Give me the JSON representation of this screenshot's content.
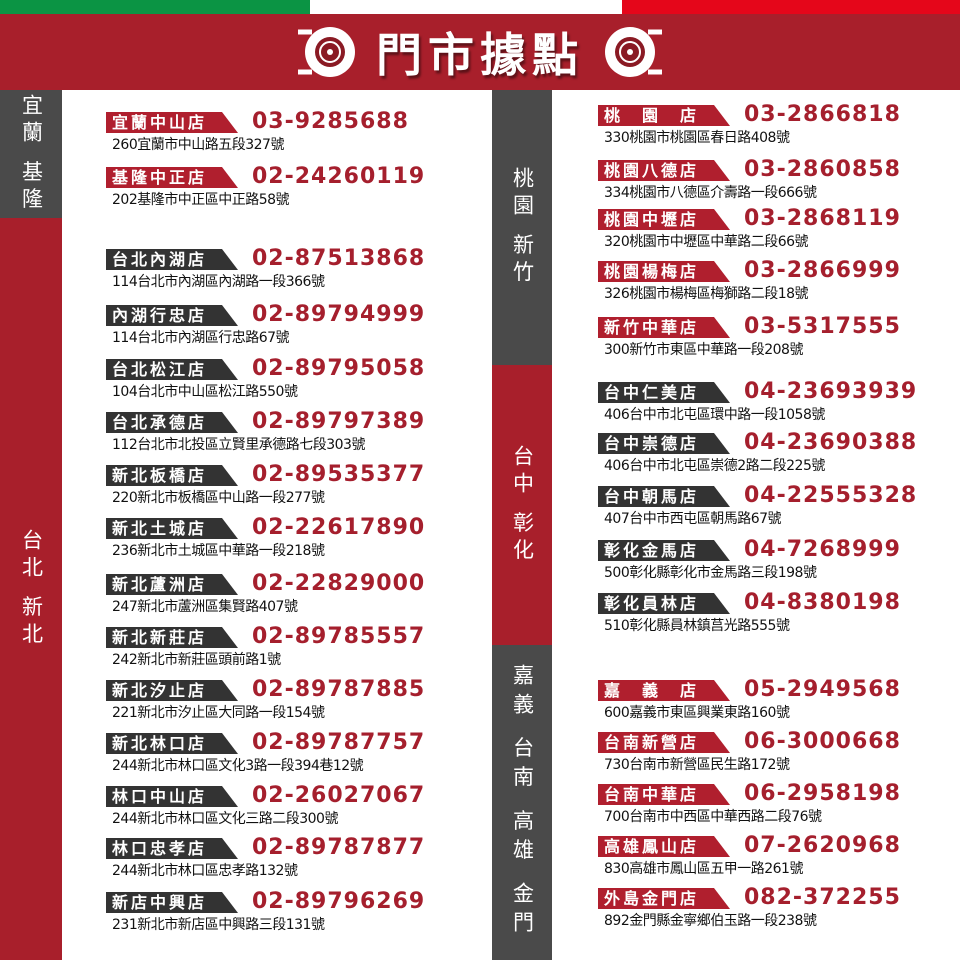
{
  "header": {
    "title": "門市據點",
    "flag_colors": [
      "#0b9444",
      "#ffffff",
      "#e5061a"
    ],
    "banner_color": "#a81f2b",
    "icon": "tire-icon"
  },
  "colors": {
    "red": "#b01f2e",
    "dark": "#333333",
    "gray_panel": "#4a4a4a",
    "phone": "#a51f2d"
  },
  "regions": {
    "yilan_keelung": "宜蘭 基隆",
    "taipei": "台北 新北",
    "taoyuan": "桃園 新竹",
    "taichung": "台中 彰化",
    "south": "嘉義 台南 高雄 金門"
  },
  "left_stores": [
    {
      "name": "宜蘭中山店",
      "phone": "03-9285688",
      "address": "260宜蘭市中山路五段327號",
      "style": "red"
    },
    {
      "name": "基隆中正店",
      "phone": "02-24260119",
      "address": "202基隆市中正區中正路58號",
      "style": "red"
    },
    {
      "name": "台北內湖店",
      "phone": "02-87513868",
      "address": "114台北市內湖區內湖路一段366號",
      "style": "dark"
    },
    {
      "name": "內湖行忠店",
      "phone": "02-89794999",
      "address": "114台北市內湖區行忠路67號",
      "style": "dark"
    },
    {
      "name": "台北松江店",
      "phone": "02-89795058",
      "address": "104台北市中山區松江路550號",
      "style": "dark"
    },
    {
      "name": "台北承德店",
      "phone": "02-89797389",
      "address": "112台北市北投區立賢里承德路七段303號",
      "style": "dark"
    },
    {
      "name": "新北板橋店",
      "phone": "02-89535377",
      "address": "220新北市板橋區中山路一段277號",
      "style": "dark"
    },
    {
      "name": "新北土城店",
      "phone": "02-22617890",
      "address": "236新北市土城區中華路一段218號",
      "style": "dark"
    },
    {
      "name": "新北蘆洲店",
      "phone": "02-22829000",
      "address": "247新北市蘆洲區集賢路407號",
      "style": "dark"
    },
    {
      "name": "新北新莊店",
      "phone": "02-89785557",
      "address": "242新北市新莊區頭前路1號",
      "style": "dark"
    },
    {
      "name": "新北汐止店",
      "phone": "02-89787885",
      "address": "221新北市汐止區大同路一段154號",
      "style": "dark"
    },
    {
      "name": "新北林口店",
      "phone": "02-89787757",
      "address": "244新北市林口區文化3路一段394巷12號",
      "style": "dark"
    },
    {
      "name": "林口中山店",
      "phone": "02-26027067",
      "address": "244新北市林口區文化三路二段300號",
      "style": "dark"
    },
    {
      "name": "林口忠孝店",
      "phone": "02-89787877",
      "address": "244新北市林口區忠孝路132號",
      "style": "dark"
    },
    {
      "name": "新店中興店",
      "phone": "02-89796269",
      "address": "231新北市新店區中興路三段131號",
      "style": "dark"
    }
  ],
  "right_stores": [
    {
      "name": "桃　園　店",
      "phone": "03-2866818",
      "address": "330桃園市桃園區春日路408號",
      "style": "red"
    },
    {
      "name": "桃園八德店",
      "phone": "03-2860858",
      "address": "334桃園市八德區介壽路一段666號",
      "style": "red"
    },
    {
      "name": "桃園中壢店",
      "phone": "03-2868119",
      "address": "320桃園市中壢區中華路二段66號",
      "style": "red"
    },
    {
      "name": "桃園楊梅店",
      "phone": "03-2866999",
      "address": "326桃園市楊梅區梅獅路二段18號",
      "style": "red"
    },
    {
      "name": "新竹中華店",
      "phone": "03-5317555",
      "address": "300新竹市東區中華路一段208號",
      "style": "red"
    },
    {
      "name": "台中仁美店",
      "phone": "04-23693939",
      "address": "406台中市北屯區環中路一段1058號",
      "style": "dark"
    },
    {
      "name": "台中崇德店",
      "phone": "04-23690388",
      "address": "406台中市北屯區崇德2路二段225號",
      "style": "dark"
    },
    {
      "name": "台中朝馬店",
      "phone": "04-22555328",
      "address": "407台中市西屯區朝馬路67號",
      "style": "dark"
    },
    {
      "name": "彰化金馬店",
      "phone": "04-7268999",
      "address": "500彰化縣彰化市金馬路三段198號",
      "style": "dark"
    },
    {
      "name": "彰化員林店",
      "phone": "04-8380198",
      "address": "510彰化縣員林鎮莒光路555號",
      "style": "dark"
    },
    {
      "name": "嘉　義　店",
      "phone": "05-2949568",
      "address": "600嘉義市東區興業東路160號",
      "style": "red"
    },
    {
      "name": "台南新營店",
      "phone": "06-3000668",
      "address": "730台南市新營區民生路172號",
      "style": "red"
    },
    {
      "name": "台南中華店",
      "phone": "06-2958198",
      "address": "700台南市中西區中華西路二段76號",
      "style": "red"
    },
    {
      "name": "高雄鳳山店",
      "phone": "07-2620968",
      "address": "830高雄市鳳山區五甲一路261號",
      "style": "red"
    },
    {
      "name": "外島金門店",
      "phone": "082-372255",
      "address": "892金門縣金寧鄉伯玉路一段238號",
      "style": "red"
    }
  ]
}
